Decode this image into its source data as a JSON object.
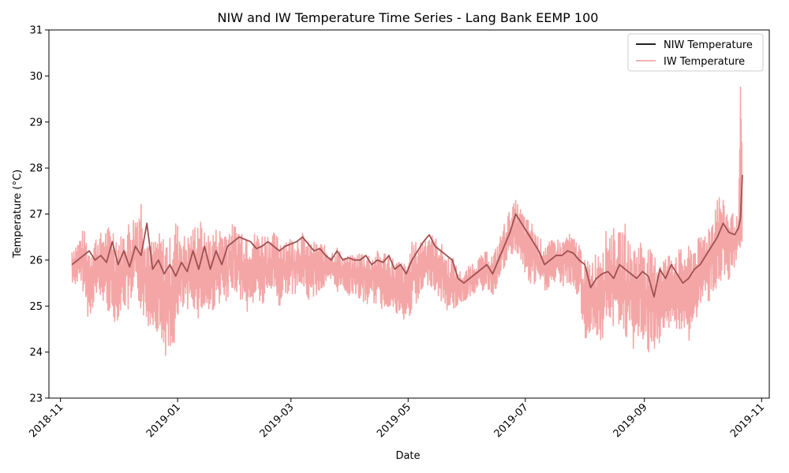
{
  "chart_data": {
    "type": "line",
    "title": "NIW and IW Temperature Time Series - Lang Bank EEMP 100",
    "xlabel": "Date",
    "ylabel": "Temperature (°C)",
    "ylim": [
      23,
      31
    ],
    "xlim": [
      "2018-10-26",
      "2019-11-05"
    ],
    "y_ticks": [
      23,
      24,
      25,
      26,
      27,
      28,
      29,
      30,
      31
    ],
    "x_ticks": [
      "2018-11",
      "2019-01",
      "2019-03",
      "2019-05",
      "2019-07",
      "2019-09",
      "2019-11"
    ],
    "x_tick_dates": [
      "2018-11-01",
      "2019-01-01",
      "2019-03-01",
      "2019-05-01",
      "2019-07-01",
      "2019-09-01",
      "2019-11-01"
    ],
    "grid": false,
    "legend": "top-right",
    "colors": {
      "niw": "#000000",
      "iw": "#f08080",
      "niw_visible": "#a05050"
    },
    "series": [
      {
        "name": "NIW Temperature",
        "x": [
          "2018-11-07",
          "2018-11-10",
          "2018-11-13",
          "2018-11-16",
          "2018-11-19",
          "2018-11-22",
          "2018-11-25",
          "2018-11-28",
          "2018-12-01",
          "2018-12-04",
          "2018-12-07",
          "2018-12-10",
          "2018-12-13",
          "2018-12-16",
          "2018-12-19",
          "2018-12-22",
          "2018-12-25",
          "2018-12-28",
          "2018-12-31",
          "2019-01-03",
          "2019-01-06",
          "2019-01-09",
          "2019-01-12",
          "2019-01-15",
          "2019-01-18",
          "2019-01-21",
          "2019-01-24",
          "2019-01-27",
          "2019-01-30",
          "2019-02-02",
          "2019-02-05",
          "2019-02-08",
          "2019-02-11",
          "2019-02-14",
          "2019-02-17",
          "2019-02-20",
          "2019-02-23",
          "2019-02-26",
          "2019-03-01",
          "2019-03-04",
          "2019-03-07",
          "2019-03-10",
          "2019-03-13",
          "2019-03-16",
          "2019-03-19",
          "2019-03-22",
          "2019-03-25",
          "2019-03-28",
          "2019-03-31",
          "2019-04-03",
          "2019-04-06",
          "2019-04-09",
          "2019-04-12",
          "2019-04-15",
          "2019-04-18",
          "2019-04-21",
          "2019-04-24",
          "2019-04-27",
          "2019-04-30",
          "2019-05-03",
          "2019-05-06",
          "2019-05-09",
          "2019-05-12",
          "2019-05-15",
          "2019-05-18",
          "2019-05-21",
          "2019-05-24",
          "2019-05-27",
          "2019-05-30",
          "2019-06-02",
          "2019-06-05",
          "2019-06-08",
          "2019-06-11",
          "2019-06-14",
          "2019-06-17",
          "2019-06-20",
          "2019-06-23",
          "2019-06-26",
          "2019-06-29",
          "2019-07-02",
          "2019-07-05",
          "2019-07-08",
          "2019-07-11",
          "2019-07-14",
          "2019-07-17",
          "2019-07-20",
          "2019-07-23",
          "2019-07-26",
          "2019-07-29",
          "2019-08-01",
          "2019-08-04",
          "2019-08-07",
          "2019-08-10",
          "2019-08-13",
          "2019-08-16",
          "2019-08-19",
          "2019-08-22",
          "2019-08-25",
          "2019-08-28",
          "2019-08-31",
          "2019-09-03",
          "2019-09-06",
          "2019-09-09",
          "2019-09-12",
          "2019-09-15",
          "2019-09-18",
          "2019-09-21",
          "2019-09-24",
          "2019-09-27",
          "2019-09-30",
          "2019-10-03",
          "2019-10-06",
          "2019-10-09",
          "2019-10-12",
          "2019-10-15",
          "2019-10-18",
          "2019-10-20",
          "2019-10-21",
          "2019-10-22"
        ],
        "values": [
          25.9,
          26.0,
          26.1,
          26.2,
          26.0,
          26.1,
          25.95,
          26.4,
          25.9,
          26.2,
          25.85,
          26.3,
          26.1,
          26.8,
          25.8,
          26.0,
          25.7,
          25.9,
          25.65,
          25.95,
          25.75,
          26.2,
          25.8,
          26.3,
          25.8,
          26.2,
          25.9,
          26.3,
          26.4,
          26.5,
          26.45,
          26.4,
          26.25,
          26.3,
          26.4,
          26.3,
          26.2,
          26.3,
          26.35,
          26.4,
          26.5,
          26.35,
          26.2,
          26.25,
          26.1,
          26.0,
          26.2,
          26.0,
          26.05,
          26.0,
          26.0,
          26.1,
          25.9,
          26.0,
          25.95,
          26.1,
          25.8,
          25.9,
          25.7,
          26.0,
          26.2,
          26.4,
          26.55,
          26.3,
          26.2,
          26.1,
          26.0,
          25.6,
          25.5,
          25.6,
          25.7,
          25.8,
          25.9,
          25.7,
          26.0,
          26.3,
          26.6,
          27.0,
          26.8,
          26.6,
          26.4,
          26.2,
          25.9,
          26.0,
          26.1,
          26.1,
          26.2,
          26.15,
          26.0,
          25.9,
          25.4,
          25.6,
          25.7,
          25.75,
          25.6,
          25.9,
          25.8,
          25.7,
          25.6,
          25.75,
          25.65,
          25.2,
          25.8,
          25.6,
          25.9,
          25.7,
          25.5,
          25.6,
          25.8,
          25.9,
          26.1,
          26.3,
          26.5,
          26.8,
          26.6,
          26.55,
          26.7,
          26.9,
          27.85
        ]
      },
      {
        "name": "IW Temperature",
        "x": [
          "2018-11-07",
          "2018-11-10",
          "2018-11-13",
          "2018-11-16",
          "2018-11-19",
          "2018-11-22",
          "2018-11-25",
          "2018-11-28",
          "2018-12-01",
          "2018-12-04",
          "2018-12-07",
          "2018-12-10",
          "2018-12-13",
          "2018-12-16",
          "2018-12-19",
          "2018-12-22",
          "2018-12-25",
          "2018-12-28",
          "2018-12-31",
          "2019-01-03",
          "2019-01-06",
          "2019-01-09",
          "2019-01-12",
          "2019-01-15",
          "2019-01-18",
          "2019-01-21",
          "2019-01-24",
          "2019-01-27",
          "2019-01-30",
          "2019-02-02",
          "2019-02-05",
          "2019-02-08",
          "2019-02-11",
          "2019-02-14",
          "2019-02-17",
          "2019-02-20",
          "2019-02-23",
          "2019-02-26",
          "2019-03-01",
          "2019-03-04",
          "2019-03-07",
          "2019-03-10",
          "2019-03-13",
          "2019-03-16",
          "2019-03-19",
          "2019-03-22",
          "2019-03-25",
          "2019-03-28",
          "2019-03-31",
          "2019-04-03",
          "2019-04-06",
          "2019-04-09",
          "2019-04-12",
          "2019-04-15",
          "2019-04-18",
          "2019-04-21",
          "2019-04-24",
          "2019-04-27",
          "2019-04-30",
          "2019-05-03",
          "2019-05-06",
          "2019-05-09",
          "2019-05-12",
          "2019-05-15",
          "2019-05-18",
          "2019-05-21",
          "2019-05-24",
          "2019-05-27",
          "2019-05-30",
          "2019-06-02",
          "2019-06-05",
          "2019-06-08",
          "2019-06-11",
          "2019-06-14",
          "2019-06-17",
          "2019-06-20",
          "2019-06-23",
          "2019-06-26",
          "2019-06-29",
          "2019-07-02",
          "2019-07-05",
          "2019-07-08",
          "2019-07-11",
          "2019-07-14",
          "2019-07-17",
          "2019-07-20",
          "2019-07-23",
          "2019-07-26",
          "2019-07-29",
          "2019-08-01",
          "2019-08-04",
          "2019-08-07",
          "2019-08-10",
          "2019-08-13",
          "2019-08-16",
          "2019-08-19",
          "2019-08-22",
          "2019-08-25",
          "2019-08-28",
          "2019-08-31",
          "2019-09-03",
          "2019-09-06",
          "2019-09-09",
          "2019-09-12",
          "2019-09-15",
          "2019-09-18",
          "2019-09-21",
          "2019-09-24",
          "2019-09-27",
          "2019-09-30",
          "2019-10-03",
          "2019-10-06",
          "2019-10-09",
          "2019-10-12",
          "2019-10-15",
          "2019-10-18",
          "2019-10-20",
          "2019-10-21",
          "2019-10-22"
        ],
        "low": [
          25.4,
          25.5,
          25.3,
          24.6,
          25.2,
          25.1,
          25.0,
          24.6,
          24.7,
          25.0,
          24.8,
          25.1,
          24.9,
          24.5,
          24.6,
          24.4,
          24.0,
          23.7,
          24.3,
          24.9,
          24.8,
          25.0,
          24.7,
          24.9,
          24.8,
          25.0,
          25.1,
          24.9,
          25.4,
          25.2,
          24.9,
          24.8,
          25.3,
          24.9,
          25.2,
          25.4,
          24.9,
          25.3,
          25.2,
          25.3,
          25.4,
          25.1,
          25.2,
          25.3,
          25.4,
          25.5,
          25.3,
          25.4,
          25.2,
          25.3,
          25.1,
          25.0,
          25.1,
          25.0,
          24.9,
          25.0,
          24.8,
          24.7,
          24.6,
          24.9,
          25.0,
          25.3,
          25.5,
          25.3,
          25.1,
          24.9,
          24.9,
          25.0,
          25.1,
          25.2,
          25.3,
          25.3,
          25.4,
          25.2,
          25.5,
          25.8,
          26.0,
          26.2,
          25.9,
          25.5,
          25.4,
          25.5,
          25.3,
          25.4,
          25.5,
          25.4,
          25.5,
          25.3,
          25.2,
          24.1,
          24.5,
          24.3,
          24.2,
          24.6,
          24.5,
          24.6,
          24.3,
          24.0,
          24.1,
          24.3,
          23.9,
          23.7,
          24.2,
          24.3,
          24.7,
          24.4,
          24.3,
          24.2,
          24.5,
          25.0,
          25.0,
          25.2,
          25.4,
          25.5,
          25.3,
          25.8,
          26.2,
          25.8,
          26.5
        ],
        "high": [
          26.3,
          26.4,
          26.7,
          26.3,
          26.5,
          26.6,
          26.7,
          26.8,
          26.5,
          26.6,
          26.9,
          27.0,
          27.4,
          26.6,
          26.4,
          26.6,
          26.5,
          26.5,
          26.9,
          26.6,
          26.5,
          26.7,
          27.0,
          26.6,
          26.6,
          26.7,
          26.7,
          26.7,
          26.8,
          26.7,
          26.7,
          26.6,
          26.6,
          26.6,
          26.6,
          26.6,
          26.5,
          26.5,
          26.5,
          26.5,
          26.6,
          26.4,
          26.4,
          26.4,
          26.3,
          26.2,
          26.3,
          26.1,
          26.1,
          26.1,
          26.2,
          26.2,
          26.1,
          26.2,
          26.2,
          26.2,
          26.0,
          26.0,
          25.9,
          26.4,
          26.4,
          26.5,
          26.6,
          26.5,
          26.4,
          26.1,
          26.1,
          25.8,
          25.7,
          25.9,
          26.0,
          26.1,
          26.2,
          26.1,
          26.4,
          26.8,
          27.1,
          27.3,
          27.1,
          26.9,
          26.8,
          26.5,
          26.4,
          26.4,
          26.5,
          26.4,
          26.6,
          26.5,
          26.4,
          26.0,
          26.0,
          26.2,
          26.5,
          26.7,
          26.7,
          26.6,
          26.8,
          26.3,
          26.4,
          26.5,
          26.3,
          26.1,
          26.2,
          26.1,
          26.2,
          26.3,
          26.2,
          26.3,
          26.4,
          26.5,
          26.7,
          26.9,
          27.5,
          27.3,
          27.1,
          27.0,
          26.9,
          29.8,
          28.0
        ]
      }
    ]
  }
}
